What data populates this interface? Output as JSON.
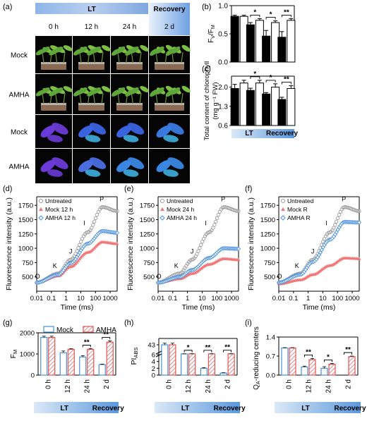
{
  "panel_letters": [
    "(a)",
    "(b)",
    "(c)",
    "(d)",
    "(e)",
    "(f)",
    "(g)",
    "(h)",
    "(i)"
  ],
  "photo_grid": {
    "header_lt": "LT",
    "header_recovery": "Recovery",
    "columns": [
      "0 h",
      "12 h",
      "24 h",
      "2 d"
    ],
    "rows": [
      "Mock",
      "AMHA",
      "Mock",
      "AMHA"
    ],
    "row_kinds": [
      "plant",
      "plant",
      "fluor",
      "fluor"
    ]
  },
  "colors": {
    "mock_fill": "#000000",
    "amha_fill": "#ffffff",
    "mock_bar_g": "#4a90d9",
    "amha_bar_g": "#e05555",
    "untreated": "#9a9a9a",
    "mock_curve": "#f07878",
    "amha_curve": "#4a8fdf",
    "band_light": "#dbe9f7",
    "band_dark": "#5b98dd"
  },
  "categories": [
    "0 h",
    "12 h",
    "24 h",
    "2 d"
  ],
  "category_group_lt": "LT",
  "category_group_recovery": "Recovery",
  "chart_data": [
    {
      "panel": "b",
      "type": "bar",
      "ylabel": "FV/FM",
      "ylabel_main": "F",
      "ylabel_sub1": "V",
      "ylabel_sep": "/F",
      "ylabel_sub2": "M",
      "ylim": [
        0,
        1.0
      ],
      "yticks": [
        "0.0",
        "0.5",
        "1.0"
      ],
      "series": [
        {
          "name": "",
          "values": [
            0.81,
            0.66,
            0.46,
            0.44
          ],
          "err": [
            0.02,
            0.04,
            0.1,
            0.1
          ]
        },
        {
          "name": "",
          "values": [
            0.81,
            0.74,
            0.7,
            0.74
          ],
          "err": [
            0.02,
            0.03,
            0.03,
            0.03
          ]
        }
      ],
      "sig": [
        "",
        "*",
        "*",
        "**"
      ]
    },
    {
      "panel": "c",
      "type": "bar",
      "ylabel": "Total content of chlorophyll (mg g−1 FW)",
      "ylabel_line1": "Total content of chlorophyll",
      "ylabel_line2": "(mg g⁻¹ FW)",
      "ylim": [
        0.6,
        2.4
      ],
      "yticks": [
        "0.6",
        "1.3",
        "2.0"
      ],
      "series": [
        {
          "name": "",
          "values": [
            1.95,
            1.88,
            1.75,
            1.55
          ],
          "err": [
            0.15,
            0.08,
            0.05,
            0.08
          ]
        },
        {
          "name": "",
          "values": [
            2.15,
            2.15,
            2.0,
            1.95
          ],
          "err": [
            0.1,
            0.1,
            0.12,
            0.1
          ]
        }
      ],
      "sig": [
        "",
        "*",
        "*",
        "**"
      ],
      "xgroup_lt": "LT",
      "xgroup_recovery": "Recovery"
    },
    {
      "panel": "d",
      "type": "scatter",
      "xlabel": "Time (ms)",
      "ylabel": "Fluorescence intensity (a.u.)",
      "xscale": "log",
      "xlim": [
        0.01,
        3000
      ],
      "xticks": [
        "0.01",
        "0.1",
        "1",
        "10",
        "100",
        "1000"
      ],
      "ylim": [
        250,
        1900
      ],
      "yticks": [
        "500",
        "750",
        "1000",
        "1250",
        "1500",
        "1750"
      ],
      "legend": [
        "Untreated",
        "Mock 12 h",
        "AMHA 12 h"
      ],
      "ojip_labels": [
        "O",
        "K",
        "J",
        "I",
        "P"
      ],
      "series": [
        {
          "name": "Untreated",
          "F_O": 400,
          "F_K": 560,
          "F_J": 800,
          "F_I": 1280,
          "F_P": 1720,
          "F_end": 1650
        },
        {
          "name": "Mock 12 h",
          "F_O": 400,
          "F_K": 520,
          "F_J": 680,
          "F_I": 930,
          "F_P": 1110,
          "F_end": 1080
        },
        {
          "name": "AMHA 12 h",
          "F_O": 400,
          "F_K": 540,
          "F_J": 740,
          "F_I": 1080,
          "F_P": 1300,
          "F_end": 1270
        }
      ]
    },
    {
      "panel": "e",
      "type": "scatter",
      "xlabel": "Time (ms)",
      "ylabel": "Fluorescence intensity (a.u.)",
      "xscale": "log",
      "xlim": [
        0.01,
        3000
      ],
      "xticks": [
        "0.01",
        "0.1",
        "1",
        "10",
        "100",
        "1000"
      ],
      "ylim": [
        250,
        1900
      ],
      "yticks": [
        "500",
        "750",
        "1000",
        "1250",
        "1500",
        "1750"
      ],
      "legend": [
        "Untreated",
        "Mock 24 h",
        "AMHA 24 h"
      ],
      "ojip_labels": [
        "O",
        "K",
        "J",
        "I",
        "P"
      ],
      "series": [
        {
          "name": "Untreated",
          "F_O": 400,
          "F_K": 560,
          "F_J": 800,
          "F_I": 1280,
          "F_P": 1720,
          "F_end": 1650
        },
        {
          "name": "Mock 24 h",
          "F_O": 400,
          "F_K": 470,
          "F_J": 560,
          "F_I": 720,
          "F_P": 820,
          "F_end": 800
        },
        {
          "name": "AMHA 24 h",
          "F_O": 400,
          "F_K": 500,
          "F_J": 620,
          "F_I": 830,
          "F_P": 1000,
          "F_end": 990
        }
      ]
    },
    {
      "panel": "f",
      "type": "scatter",
      "xlabel": "Time (ms)",
      "ylabel": "Fluorescence intensity (a.u.)",
      "xscale": "log",
      "xlim": [
        0.01,
        3000
      ],
      "xticks": [
        "0.01",
        "0.1",
        "1",
        "10",
        "100",
        "1000"
      ],
      "ylim": [
        250,
        1900
      ],
      "yticks": [
        "500",
        "750",
        "1000",
        "1250",
        "1500",
        "1750"
      ],
      "legend": [
        "Untreated",
        "Mock R",
        "AMHA R"
      ],
      "ojip_labels": [
        "O",
        "K",
        "J",
        "I",
        "P"
      ],
      "series": [
        {
          "name": "Untreated",
          "F_O": 400,
          "F_K": 560,
          "F_J": 800,
          "F_I": 1280,
          "F_P": 1720,
          "F_end": 1650
        },
        {
          "name": "Mock R",
          "F_O": 380,
          "F_K": 450,
          "F_J": 540,
          "F_I": 700,
          "F_P": 830,
          "F_end": 820
        },
        {
          "name": "AMHA R",
          "F_O": 400,
          "F_K": 540,
          "F_J": 760,
          "F_I": 1150,
          "F_P": 1460,
          "F_end": 1450
        }
      ]
    },
    {
      "panel": "g",
      "type": "bar",
      "ylabel": "FM",
      "ylabel_main": "F",
      "ylabel_sub": "M",
      "ylim": [
        0,
        2000
      ],
      "yticks": [
        "0",
        "1000",
        "2000"
      ],
      "legend": [
        "Mock",
        "AMHA"
      ],
      "series": [
        {
          "name": "Mock",
          "values": [
            1780,
            1060,
            860,
            500
          ],
          "err": [
            60,
            80,
            60,
            20
          ]
        },
        {
          "name": "AMHA",
          "values": [
            1780,
            1220,
            1220,
            1560
          ],
          "err": [
            60,
            30,
            30,
            60
          ]
        }
      ],
      "sig": [
        "",
        "",
        "**",
        "**"
      ],
      "xgroup_lt": "LT",
      "xgroup_recovery": "Recovery"
    },
    {
      "panel": "h",
      "type": "bar",
      "ylabel": "PIABS",
      "ylabel_main": "PI",
      "ylabel_sub": "ABS",
      "broken_axis": true,
      "yticks": [
        "0",
        "2",
        "4",
        "6",
        "43"
      ],
      "series": [
        {
          "name": "Mock",
          "values": [
            43,
            8.3,
            2.0,
            0.6
          ],
          "err": [
            0.5,
            0.6,
            0.2,
            0.1
          ]
        },
        {
          "name": "AMHA",
          "values": [
            43,
            10.0,
            9.3,
            10.4
          ],
          "err": [
            0.5,
            0.4,
            0.3,
            0.4
          ]
        }
      ],
      "sig": [
        "",
        "*",
        "**",
        "**"
      ],
      "xgroup_lt": "LT",
      "xgroup_recovery": "Recovery"
    },
    {
      "panel": "i",
      "type": "bar",
      "ylabel": "QA-reducing centers",
      "ylabel_main": "Q",
      "ylabel_sub": "A",
      "ylabel_rest": "-reducing centers",
      "ylim": [
        0,
        1.4
      ],
      "yticks": [
        "0.0",
        "0.7",
        "1.4"
      ],
      "series": [
        {
          "name": "Mock",
          "values": [
            1.0,
            0.3,
            0.25,
            0.0
          ],
          "err": [
            0.01,
            0.03,
            0.06,
            0.0
          ]
        },
        {
          "name": "AMHA",
          "values": [
            1.0,
            0.57,
            0.4,
            0.68
          ],
          "err": [
            0.01,
            0.04,
            0.03,
            0.02
          ]
        }
      ],
      "sig": [
        "",
        "**",
        "*",
        "**"
      ],
      "xgroup_lt": "LT",
      "xgroup_recovery": "Recovery"
    }
  ]
}
